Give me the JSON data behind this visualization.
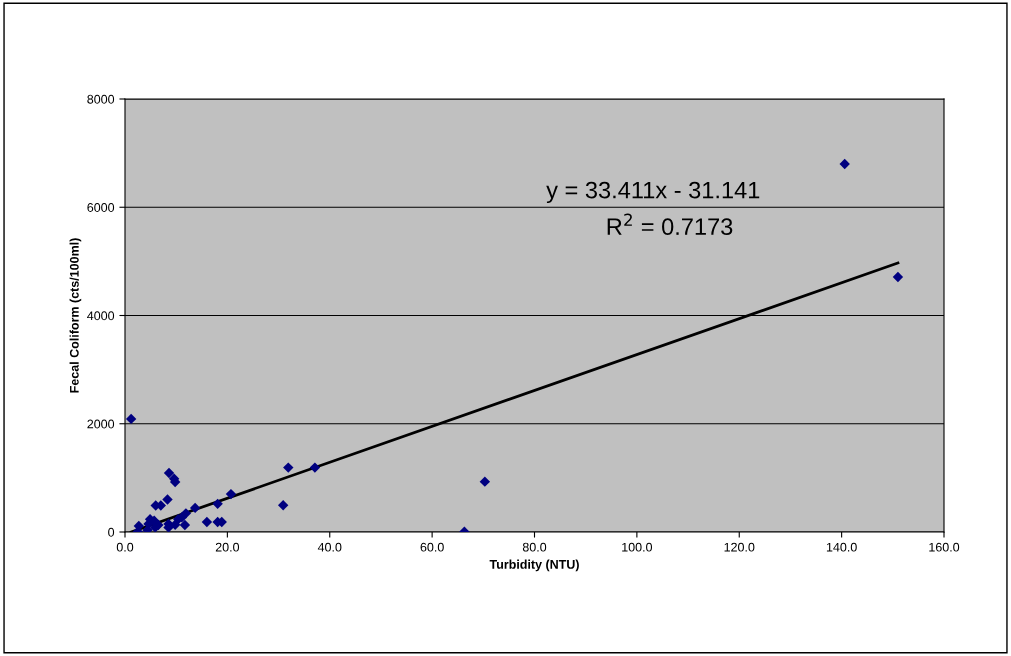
{
  "chart_data": {
    "type": "scatter",
    "xlabel": "Turbidity (NTU)",
    "ylabel": "Fecal Coliform (cts/100ml)",
    "annotations": [
      "y = 33.411x - 31.141",
      "R$^{2}$ = 0.7173"
    ],
    "series": [
      {
        "color": "#000080",
        "marker": "diamond",
        "x": [
          1.2,
          8.6,
          9.6,
          9.8,
          8.3,
          6.0,
          7.0,
          13.7,
          11.9,
          11.1,
          10.4,
          8.5,
          8.5,
          9.8,
          11.7,
          16.0,
          18.1,
          18.9,
          18.1,
          20.7,
          4.9,
          5.7,
          4.6,
          2.7,
          2.5,
          4.4,
          5.9,
          6.5,
          30.9,
          31.9,
          37.1,
          66.3,
          70.3,
          140.6,
          151
        ],
        "values": [
          2090,
          1090,
          985,
          925,
          600,
          490,
          490,
          445,
          345,
          270,
          235,
          150,
          85,
          135,
          130,
          185,
          185,
          185,
          520,
          700,
          235,
          210,
          150,
          110,
          5,
          35,
          85,
          130,
          495,
          1190,
          1190,
          5,
          930,
          6800,
          4710
        ]
      },
      {
        "type": "line",
        "color": "#000000",
        "x": [
          1.2,
          151
        ],
        "values": [
          0,
          4970
        ]
      }
    ],
    "xlim": [
      0,
      160
    ],
    "xticks": [
      {
        "value": 0,
        "label": "0.0"
      },
      {
        "value": 20,
        "label": "20.0"
      },
      {
        "value": 40,
        "label": "40.0"
      },
      {
        "value": 60,
        "label": "60.0"
      },
      {
        "value": 80,
        "label": "80.0"
      },
      {
        "value": 100,
        "label": "100.0"
      },
      {
        "value": 120,
        "label": "120.0"
      },
      {
        "value": 140,
        "label": "140.0"
      },
      {
        "value": 160,
        "label": "160.0"
      }
    ],
    "ylim": [
      0,
      8000
    ],
    "yticks": [
      0,
      2000,
      4000,
      6000,
      8000
    ],
    "grid": "y",
    "legend": false
  }
}
